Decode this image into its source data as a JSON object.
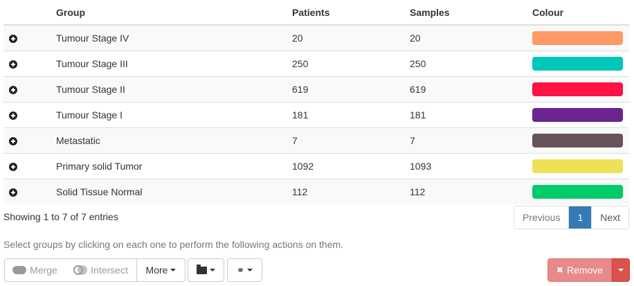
{
  "table": {
    "headers": {
      "expand": "",
      "group": "Group",
      "patients": "Patients",
      "samples": "Samples",
      "colour": "Colour"
    },
    "rows": [
      {
        "group": "Tumour Stage IV",
        "patients": "20",
        "samples": "20",
        "colour": "#ff9966"
      },
      {
        "group": "Tumour Stage III",
        "patients": "250",
        "samples": "250",
        "colour": "#00c8b8"
      },
      {
        "group": "Tumour Stage II",
        "patients": "619",
        "samples": "619",
        "colour": "#ff1144"
      },
      {
        "group": "Tumour Stage I",
        "patients": "181",
        "samples": "181",
        "colour": "#6a2590"
      },
      {
        "group": "Metastatic",
        "patients": "7",
        "samples": "7",
        "colour": "#685358"
      },
      {
        "group": "Primary solid Tumor",
        "patients": "1092",
        "samples": "1093",
        "colour": "#eee158"
      },
      {
        "group": "Solid Tissue Normal",
        "patients": "112",
        "samples": "112",
        "colour": "#00cc6a"
      }
    ]
  },
  "info": {
    "text": "Showing 1 to 7 of 7 entries"
  },
  "pagination": {
    "previous": "Previous",
    "current": "1",
    "next": "Next"
  },
  "help": {
    "text": "Select groups by clicking on each one to perform the following actions on them."
  },
  "actions": {
    "merge": "Merge",
    "intersect": "Intersect",
    "more": "More",
    "remove": "Remove"
  },
  "icons": {
    "expand": "plus-circle-icon",
    "merge": "merge-icon",
    "intersect": "intersect-icon",
    "folder": "folder-open-icon",
    "link": "link-icon",
    "remove": "times-icon"
  }
}
